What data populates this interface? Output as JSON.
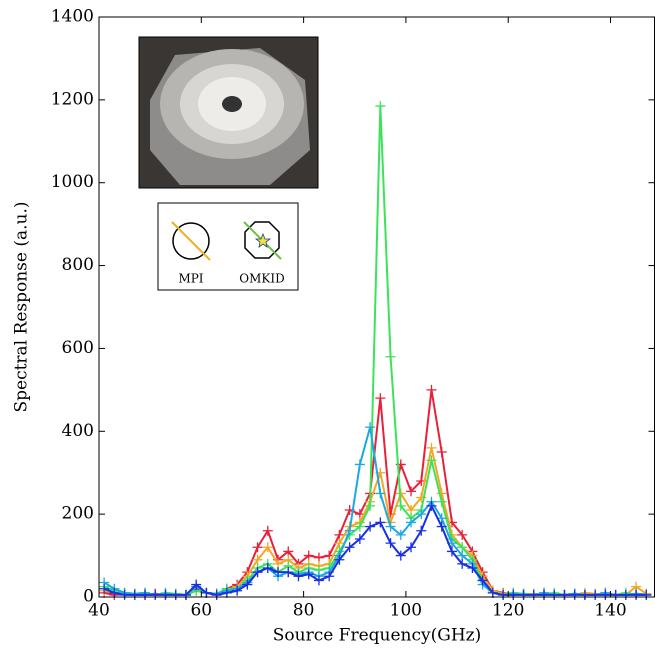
{
  "chart_data": {
    "type": "line",
    "xlabel": "Source Frequency(GHz)",
    "ylabel": "Spectral Response (a.u.)",
    "annotations": [
      "MPI",
      "OMKID"
    ],
    "x": [
      41,
      43,
      45,
      47,
      49,
      51,
      53,
      55,
      57,
      59,
      61,
      63,
      65,
      67,
      69,
      71,
      73,
      75,
      77,
      79,
      81,
      83,
      85,
      87,
      89,
      91,
      93,
      95,
      97,
      99,
      101,
      103,
      105,
      107,
      109,
      111,
      113,
      115,
      117,
      119,
      121,
      123,
      125,
      127,
      129,
      131,
      133,
      135,
      137,
      139,
      141,
      143,
      145,
      147
    ],
    "series": [
      {
        "color": "#e8203a",
        "values": [
          10,
          5,
          8,
          5,
          5,
          8,
          5,
          5,
          5,
          20,
          10,
          5,
          20,
          30,
          60,
          120,
          160,
          90,
          110,
          80,
          100,
          95,
          100,
          150,
          210,
          200,
          250,
          480,
          200,
          320,
          255,
          280,
          500,
          350,
          180,
          150,
          110,
          60,
          15,
          10,
          5,
          8,
          5,
          10,
          5,
          5,
          8,
          5,
          5,
          10,
          5,
          5,
          8,
          5
        ]
      },
      {
        "color": "#f5a623",
        "values": [
          15,
          10,
          8,
          5,
          10,
          5,
          8,
          5,
          5,
          15,
          10,
          5,
          15,
          25,
          50,
          90,
          120,
          80,
          90,
          70,
          80,
          75,
          80,
          130,
          170,
          180,
          230,
          300,
          180,
          250,
          210,
          240,
          360,
          250,
          150,
          120,
          100,
          50,
          15,
          8,
          10,
          5,
          8,
          5,
          8,
          5,
          5,
          10,
          8,
          5,
          5,
          5,
          25,
          8
        ]
      },
      {
        "color": "#3ce35a",
        "values": [
          25,
          15,
          10,
          8,
          10,
          5,
          10,
          8,
          5,
          15,
          10,
          8,
          20,
          20,
          40,
          70,
          80,
          60,
          75,
          60,
          70,
          65,
          70,
          110,
          150,
          170,
          220,
          1185,
          580,
          220,
          190,
          210,
          330,
          230,
          140,
          120,
          90,
          40,
          10,
          5,
          10,
          8,
          5,
          5,
          10,
          5,
          8,
          5,
          5,
          8,
          5,
          10,
          5,
          5
        ]
      },
      {
        "color": "#1ea8e0",
        "values": [
          35,
          20,
          10,
          8,
          10,
          5,
          8,
          5,
          5,
          25,
          10,
          8,
          15,
          20,
          35,
          60,
          70,
          50,
          60,
          55,
          60,
          50,
          60,
          100,
          160,
          320,
          410,
          250,
          170,
          150,
          180,
          200,
          230,
          190,
          130,
          100,
          80,
          30,
          10,
          5,
          8,
          5,
          5,
          10,
          5,
          5,
          8,
          5,
          5,
          10,
          5,
          5,
          8,
          5
        ]
      },
      {
        "color": "#1a30e0",
        "values": [
          20,
          10,
          5,
          5,
          5,
          5,
          5,
          5,
          5,
          30,
          10,
          5,
          10,
          15,
          30,
          60,
          70,
          60,
          60,
          50,
          55,
          40,
          50,
          90,
          120,
          140,
          170,
          180,
          130,
          100,
          120,
          160,
          220,
          170,
          110,
          80,
          70,
          40,
          10,
          5,
          5,
          5,
          5,
          5,
          5,
          5,
          5,
          5,
          5,
          5,
          5,
          5,
          5,
          5
        ]
      }
    ],
    "xlim": [
      40,
      148.6
    ],
    "xticks": [
      40,
      60,
      80,
      100,
      120,
      140
    ],
    "ylim": [
      0,
      1400
    ],
    "yticks": [
      0,
      200,
      400,
      600,
      800,
      1000,
      1200,
      1400
    ],
    "grid": false
  }
}
